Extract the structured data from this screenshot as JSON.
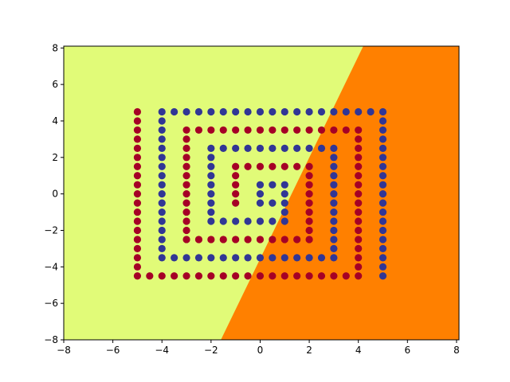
{
  "chart_data": {
    "type": "scatter",
    "title": "",
    "xlabel": "",
    "ylabel": "",
    "xlim": [
      -8,
      8.1
    ],
    "ylim": [
      -8,
      8.1
    ],
    "xticks": [
      -8,
      -6,
      -4,
      -2,
      0,
      2,
      4,
      6,
      8
    ],
    "yticks": [
      -8,
      -6,
      -4,
      -2,
      0,
      2,
      4,
      6,
      8
    ],
    "xtick_labels": [
      "−8",
      "−6",
      "−4",
      "−2",
      "0",
      "2",
      "4",
      "6",
      "8"
    ],
    "ytick_labels": [
      "−8",
      "−6",
      "−4",
      "−2",
      "0",
      "2",
      "4",
      "6",
      "8"
    ],
    "grid": false,
    "legend": "none",
    "background_regions": [
      {
        "class": 0,
        "color": "#e1fb78",
        "description_side": "left of boundary"
      },
      {
        "class": 1,
        "color": "#ff8000",
        "description_side": "right of boundary"
      }
    ],
    "decision_boundary": [
      [
        -1.6,
        -8
      ],
      [
        4.2,
        8.1
      ]
    ],
    "series": [
      {
        "color": "#a50026",
        "points": [
          [
            0,
            1.5
          ],
          [
            0.5,
            1.5
          ],
          [
            1,
            1.5
          ],
          [
            1.5,
            1.5
          ],
          [
            2,
            1.5
          ],
          [
            -1,
            -0.5
          ],
          [
            -1,
            0
          ],
          [
            -1,
            0.5
          ],
          [
            -1,
            1
          ],
          [
            -1,
            1.5
          ],
          [
            -0.5,
            1.5
          ],
          [
            2,
            -2.5
          ],
          [
            2,
            -2
          ],
          [
            2,
            -1.5
          ],
          [
            2,
            -1
          ],
          [
            2,
            -0.5
          ],
          [
            2,
            0
          ],
          [
            2,
            0.5
          ],
          [
            2,
            1
          ],
          [
            1.5,
            -2.5
          ],
          [
            1,
            -2.5
          ],
          [
            0.5,
            -2.5
          ],
          [
            0,
            -2.5
          ],
          [
            -0.5,
            -2.5
          ],
          [
            -1,
            -2.5
          ],
          [
            -1.5,
            -2.5
          ],
          [
            -2,
            -2.5
          ],
          [
            -2.5,
            -2.5
          ],
          [
            -3,
            -2.5
          ],
          [
            -3,
            -2
          ],
          [
            -3,
            -1.5
          ],
          [
            -3,
            -1
          ],
          [
            -3,
            -0.5
          ],
          [
            -3,
            0
          ],
          [
            -3,
            0.5
          ],
          [
            -3,
            1
          ],
          [
            -3,
            1.5
          ],
          [
            -3,
            2
          ],
          [
            -3,
            2.5
          ],
          [
            -3,
            3
          ],
          [
            -3,
            3.5
          ],
          [
            -2.5,
            3.5
          ],
          [
            -2,
            3.5
          ],
          [
            -1.5,
            3.5
          ],
          [
            -1,
            3.5
          ],
          [
            -0.5,
            3.5
          ],
          [
            0,
            3.5
          ],
          [
            0.5,
            3.5
          ],
          [
            1,
            3.5
          ],
          [
            1.5,
            3.5
          ],
          [
            2,
            3.5
          ],
          [
            2.5,
            3.5
          ],
          [
            3,
            3.5
          ],
          [
            3.5,
            3.5
          ],
          [
            4,
            3.5
          ],
          [
            4,
            3
          ],
          [
            4,
            2.5
          ],
          [
            4,
            2
          ],
          [
            4,
            1.5
          ],
          [
            4,
            1
          ],
          [
            4,
            0.5
          ],
          [
            4,
            0
          ],
          [
            4,
            -0.5
          ],
          [
            4,
            -1
          ],
          [
            4,
            -1.5
          ],
          [
            4,
            -2
          ],
          [
            4,
            -2.5
          ],
          [
            4,
            -3
          ],
          [
            4,
            -3.5
          ],
          [
            4,
            -4
          ],
          [
            4,
            -4.5
          ],
          [
            3.5,
            -4.5
          ],
          [
            3,
            -4.5
          ],
          [
            2.5,
            -4.5
          ],
          [
            2,
            -4.5
          ],
          [
            1.5,
            -4.5
          ],
          [
            1,
            -4.5
          ],
          [
            0.5,
            -4.5
          ],
          [
            0,
            -4.5
          ],
          [
            -0.5,
            -4.5
          ],
          [
            -1,
            -4.5
          ],
          [
            -1.5,
            -4.5
          ],
          [
            -2,
            -4.5
          ],
          [
            -2.5,
            -4.5
          ],
          [
            -3,
            -4.5
          ],
          [
            -3.5,
            -4.5
          ],
          [
            -4,
            -4.5
          ],
          [
            -4.5,
            -4.5
          ],
          [
            -5,
            -4.5
          ],
          [
            -5,
            -4
          ],
          [
            -5,
            -3.5
          ],
          [
            -5,
            -3
          ],
          [
            -5,
            -2.5
          ],
          [
            -5,
            -2
          ],
          [
            -5,
            -1.5
          ],
          [
            -5,
            -1
          ],
          [
            -5,
            -0.5
          ],
          [
            -5,
            0
          ],
          [
            -5,
            0.5
          ],
          [
            -5,
            1
          ],
          [
            -5,
            1.5
          ],
          [
            -5,
            2
          ],
          [
            -5,
            2.5
          ],
          [
            -5,
            3
          ],
          [
            -5,
            3.5
          ],
          [
            -5,
            4
          ],
          [
            -5,
            4.5
          ]
        ]
      },
      {
        "color": "#313695",
        "points": [
          [
            0.5,
            0.5
          ],
          [
            1,
            0.5
          ],
          [
            0,
            -0.5
          ],
          [
            0,
            0
          ],
          [
            0,
            0.5
          ],
          [
            0.5,
            -0.5
          ],
          [
            1,
            -0.5
          ],
          [
            1,
            -1.5
          ],
          [
            1,
            -1
          ],
          [
            1,
            0
          ],
          [
            0.5,
            -1.5
          ],
          [
            0,
            -1.5
          ],
          [
            -0.5,
            -1.5
          ],
          [
            -1,
            -1.5
          ],
          [
            -1.5,
            -1.5
          ],
          [
            -2,
            -1.5
          ],
          [
            -2,
            -1
          ],
          [
            -2,
            -0.5
          ],
          [
            -2,
            0
          ],
          [
            -2,
            0.5
          ],
          [
            -2,
            1
          ],
          [
            -2,
            1.5
          ],
          [
            -2,
            2
          ],
          [
            -2,
            2.5
          ],
          [
            -1.5,
            2.5
          ],
          [
            -1,
            2.5
          ],
          [
            -0.5,
            2.5
          ],
          [
            0,
            2.5
          ],
          [
            0.5,
            2.5
          ],
          [
            1,
            2.5
          ],
          [
            1.5,
            2.5
          ],
          [
            2,
            2.5
          ],
          [
            2.5,
            2.5
          ],
          [
            3,
            2.5
          ],
          [
            3,
            2
          ],
          [
            3,
            1.5
          ],
          [
            3,
            1
          ],
          [
            3,
            0.5
          ],
          [
            3,
            0
          ],
          [
            3,
            -0.5
          ],
          [
            3,
            -1
          ],
          [
            3,
            -1.5
          ],
          [
            3,
            -2
          ],
          [
            3,
            -2.5
          ],
          [
            3,
            -3
          ],
          [
            3,
            -3.5
          ],
          [
            2.5,
            -3.5
          ],
          [
            2,
            -3.5
          ],
          [
            1.5,
            -3.5
          ],
          [
            1,
            -3.5
          ],
          [
            0.5,
            -3.5
          ],
          [
            0,
            -3.5
          ],
          [
            -0.5,
            -3.5
          ],
          [
            -1,
            -3.5
          ],
          [
            -1.5,
            -3.5
          ],
          [
            -2,
            -3.5
          ],
          [
            -2.5,
            -3.5
          ],
          [
            -3,
            -3.5
          ],
          [
            -3.5,
            -3.5
          ],
          [
            -4,
            -3.5
          ],
          [
            -4,
            -3
          ],
          [
            -4,
            -2.5
          ],
          [
            -4,
            -2
          ],
          [
            -4,
            -1.5
          ],
          [
            -4,
            -1
          ],
          [
            -4,
            -0.5
          ],
          [
            -4,
            0
          ],
          [
            -4,
            0.5
          ],
          [
            -4,
            1
          ],
          [
            -4,
            1.5
          ],
          [
            -4,
            2
          ],
          [
            -4,
            2.5
          ],
          [
            -4,
            3
          ],
          [
            -4,
            3.5
          ],
          [
            -4,
            4
          ],
          [
            -4,
            4.5
          ],
          [
            -3.5,
            4.5
          ],
          [
            -3,
            4.5
          ],
          [
            -2.5,
            4.5
          ],
          [
            -2,
            4.5
          ],
          [
            -1.5,
            4.5
          ],
          [
            -1,
            4.5
          ],
          [
            -0.5,
            4.5
          ],
          [
            0,
            4.5
          ],
          [
            0.5,
            4.5
          ],
          [
            1,
            4.5
          ],
          [
            1.5,
            4.5
          ],
          [
            2,
            4.5
          ],
          [
            2.5,
            4.5
          ],
          [
            3,
            4.5
          ],
          [
            3.5,
            4.5
          ],
          [
            4,
            4.5
          ],
          [
            4.5,
            4.5
          ],
          [
            5,
            4.5
          ],
          [
            5,
            4
          ],
          [
            5,
            3.5
          ],
          [
            5,
            3
          ],
          [
            5,
            2.5
          ],
          [
            5,
            2
          ],
          [
            5,
            1.5
          ],
          [
            5,
            1
          ],
          [
            5,
            0.5
          ],
          [
            5,
            0
          ],
          [
            5,
            -0.5
          ],
          [
            5,
            -1
          ],
          [
            5,
            -1.5
          ],
          [
            5,
            -2
          ],
          [
            5,
            -2.5
          ],
          [
            5,
            -3
          ],
          [
            5,
            -3.5
          ],
          [
            5,
            -4
          ],
          [
            5,
            -4.5
          ]
        ]
      }
    ]
  }
}
